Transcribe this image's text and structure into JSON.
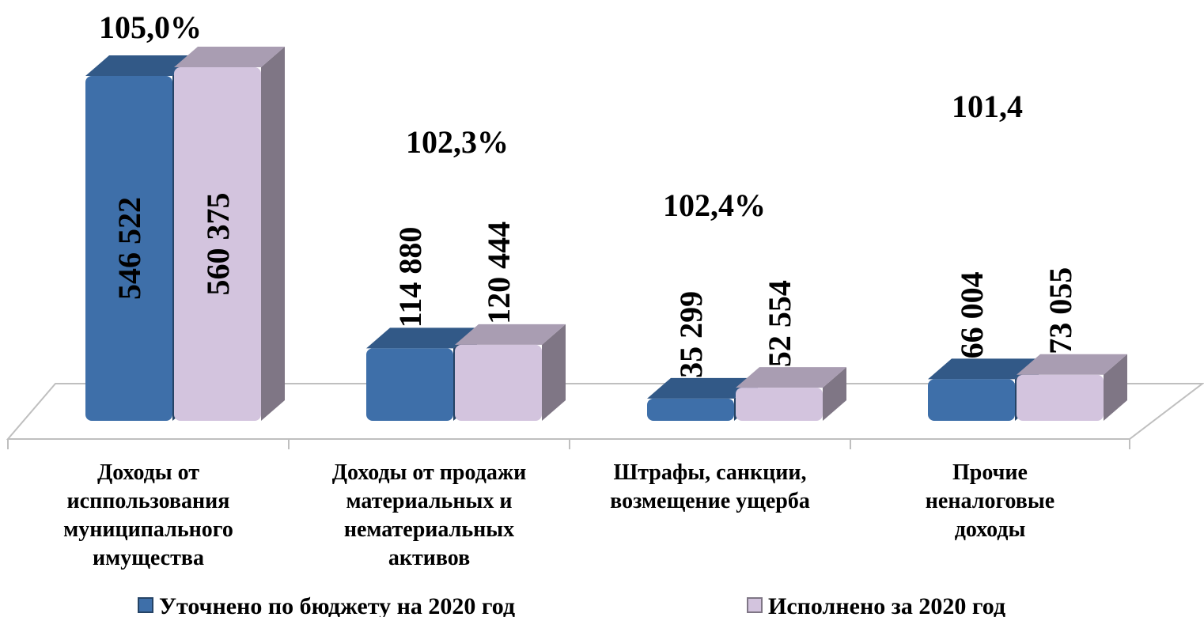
{
  "chart_data": {
    "type": "bar3d",
    "categories": [
      "Доходы от\nисппользования\nмуниципального\nимущества",
      "Доходы от продажи\nматериальных и\nнематериальных\nактивов",
      "Штрафы, санкции,\nвозмещение ущерба",
      "Прочие\nненалоговые\nдоходы"
    ],
    "series": [
      {
        "name": "Уточнено по бюджету на 2020 год",
        "color": "#3e6fa9",
        "values": [
          546522,
          114880,
          35299,
          66004
        ],
        "value_labels": [
          "546 522",
          "114 880",
          "35 299",
          "66 004"
        ]
      },
      {
        "name": "Исполнено за 2020 год",
        "color": "#d3c4de",
        "values": [
          560375,
          120444,
          52554,
          73055
        ],
        "value_labels": [
          "560 375",
          "120 444",
          "52 554",
          "73 055"
        ]
      }
    ],
    "annotations": [
      "105,0%",
      "102,3%",
      "102,4%",
      "101,4"
    ]
  }
}
